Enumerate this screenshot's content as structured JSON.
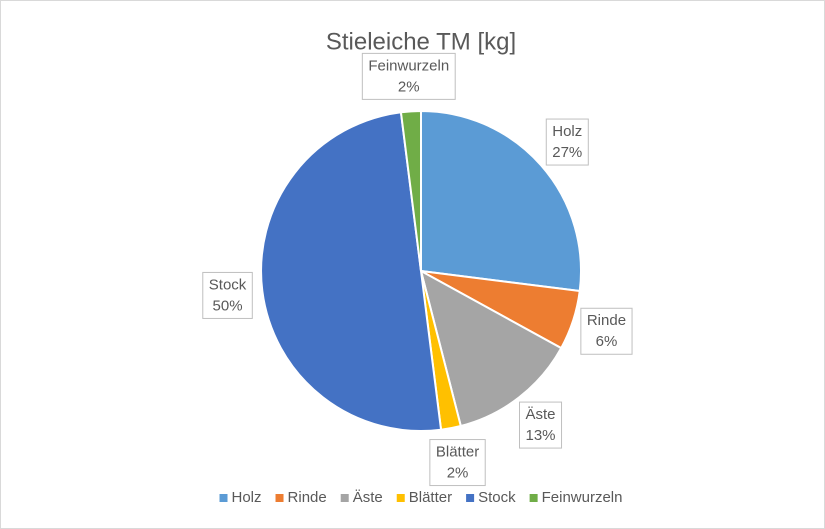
{
  "chart_data": {
    "type": "pie",
    "title": "Stieleiche TM [kg]",
    "categories": [
      "Holz",
      "Rinde",
      "Äste",
      "Blätter",
      "Stock",
      "Feinwurzeln"
    ],
    "values": [
      27,
      6,
      13,
      2,
      50,
      2
    ],
    "value_labels": [
      "27%",
      "6%",
      "13%",
      "2%",
      "50%",
      "2%"
    ],
    "colors": [
      "#5b9bd5",
      "#ed7d31",
      "#a5a5a5",
      "#ffc000",
      "#4472c4",
      "#70ad47"
    ],
    "legend": "bottom"
  }
}
